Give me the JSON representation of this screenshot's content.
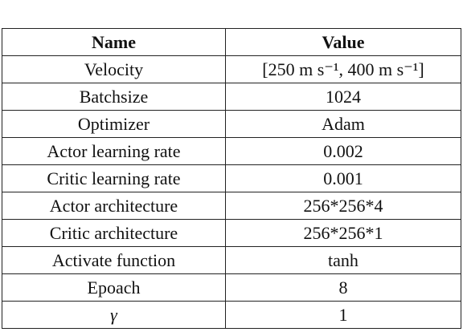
{
  "table": {
    "header": [
      "Name",
      "Value"
    ],
    "rows": [
      [
        "Velocity",
        "[250 m s⁻¹, 400 m s⁻¹]"
      ],
      [
        "Batchsize",
        "1024"
      ],
      [
        "Optimizer",
        "Adam"
      ],
      [
        "Actor learning rate",
        "0.002"
      ],
      [
        "Critic learning rate",
        "0.001"
      ],
      [
        "Actor architecture",
        "256*256*4"
      ],
      [
        "Critic architecture",
        "256*256*1"
      ],
      [
        "Activate function",
        "tanh"
      ],
      [
        "Epoach",
        "8"
      ],
      [
        "γ",
        "1"
      ]
    ]
  }
}
